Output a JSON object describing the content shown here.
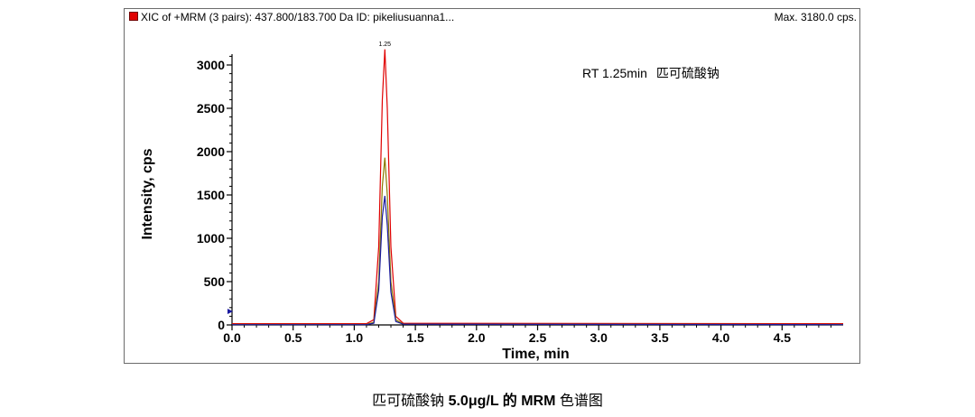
{
  "header": {
    "title": "XIC of +MRM (3 pairs): 437.800/183.700 Da ID: pikeliusuanna1...",
    "max": "Max. 3180.0 cps."
  },
  "annotation": {
    "rt": "RT 1.25min",
    "compound": "匹可硫酸钠"
  },
  "caption": {
    "compound": "匹可硫酸钠",
    "text": "5.0μg/L 的 MRM",
    "suffix": "色谱图"
  },
  "colors": {
    "series1": "#e00000",
    "series2": "#8a7a00",
    "series3": "#1a1aa0",
    "frame": "#6b6b6b"
  },
  "chart_data": {
    "type": "line",
    "title": "XIC of +MRM (3 pairs): 437.800/183.700 Da ID: pikeliusuanna1...",
    "xlabel": "Time, min",
    "ylabel": "Intensity, cps",
    "xlim": [
      0.0,
      5.0
    ],
    "ylim": [
      0,
      3200
    ],
    "x_ticks": [
      "0.0",
      "0.5",
      "1.0",
      "1.5",
      "2.0",
      "2.5",
      "3.0",
      "3.5",
      "4.0",
      "4.5"
    ],
    "y_ticks": [
      "0",
      "500",
      "1000",
      "1500",
      "2000",
      "2500",
      "3000"
    ],
    "peak_label": "1.25",
    "grid": false,
    "series": [
      {
        "color": "#e00000",
        "x": [
          0.0,
          1.1,
          1.16,
          1.2,
          1.23,
          1.25,
          1.27,
          1.3,
          1.34,
          1.4,
          5.0
        ],
        "y": [
          15,
          15,
          60,
          900,
          2600,
          3180,
          2500,
          900,
          100,
          20,
          15
        ]
      },
      {
        "color": "#8a7a00",
        "x": [
          0.0,
          1.1,
          1.16,
          1.2,
          1.23,
          1.25,
          1.27,
          1.3,
          1.34,
          1.4,
          5.0
        ],
        "y": [
          5,
          5,
          30,
          500,
          1600,
          1930,
          1500,
          500,
          60,
          10,
          5
        ]
      },
      {
        "color": "#1a1aa0",
        "x": [
          0.0,
          1.1,
          1.16,
          1.2,
          1.23,
          1.25,
          1.27,
          1.3,
          1.34,
          1.4,
          5.0
        ],
        "y": [
          3,
          3,
          20,
          400,
          1250,
          1490,
          1150,
          380,
          40,
          8,
          3
        ]
      }
    ]
  }
}
